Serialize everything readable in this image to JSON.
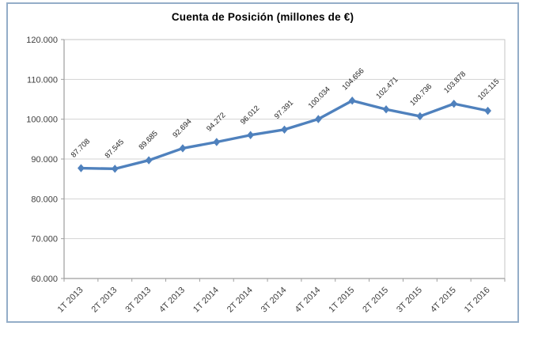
{
  "chart_data": {
    "type": "line",
    "title": "Cuenta de Posición (millones de €)",
    "categories": [
      "1T 2013",
      "2T 2013",
      "3T 2013",
      "4T 2013",
      "1T 2014",
      "2T 2014",
      "3T 2014",
      "4T 2014",
      "1T 2015",
      "2T 2015",
      "3T 2015",
      "4T 2015",
      "1T 2016"
    ],
    "values": [
      87708,
      87545,
      89685,
      92694,
      94272,
      96012,
      97391,
      100034,
      104656,
      102471,
      100736,
      103878,
      102115
    ],
    "point_labels": [
      "87.708",
      "87.545",
      "89.685",
      "92.694",
      "94.272",
      "96.012",
      "97.391",
      "100.034",
      "104.656",
      "102.471",
      "100.736",
      "103.878",
      "102.115"
    ],
    "xlabel": "",
    "ylabel": "",
    "ylim": [
      60000,
      120000
    ],
    "ytick_step": 10000,
    "ytick_labels": [
      "60.000",
      "70.000",
      "80.000",
      "90.000",
      "100.000",
      "110.000",
      "120.000"
    ],
    "grid": true,
    "legend": "none",
    "marker": "diamond"
  },
  "colors": {
    "series": "#4F81BD",
    "gridline": "#D3D3D3",
    "plot_border": "#C6C6C6",
    "axis_line": "#9E9E9E",
    "tick": "#9E9E9E",
    "chart_border": "#94ADC8",
    "title_text": "#000000",
    "axis_text": "#3F3F3F",
    "data_label_text": "#262626",
    "background": "#FFFFFF"
  }
}
